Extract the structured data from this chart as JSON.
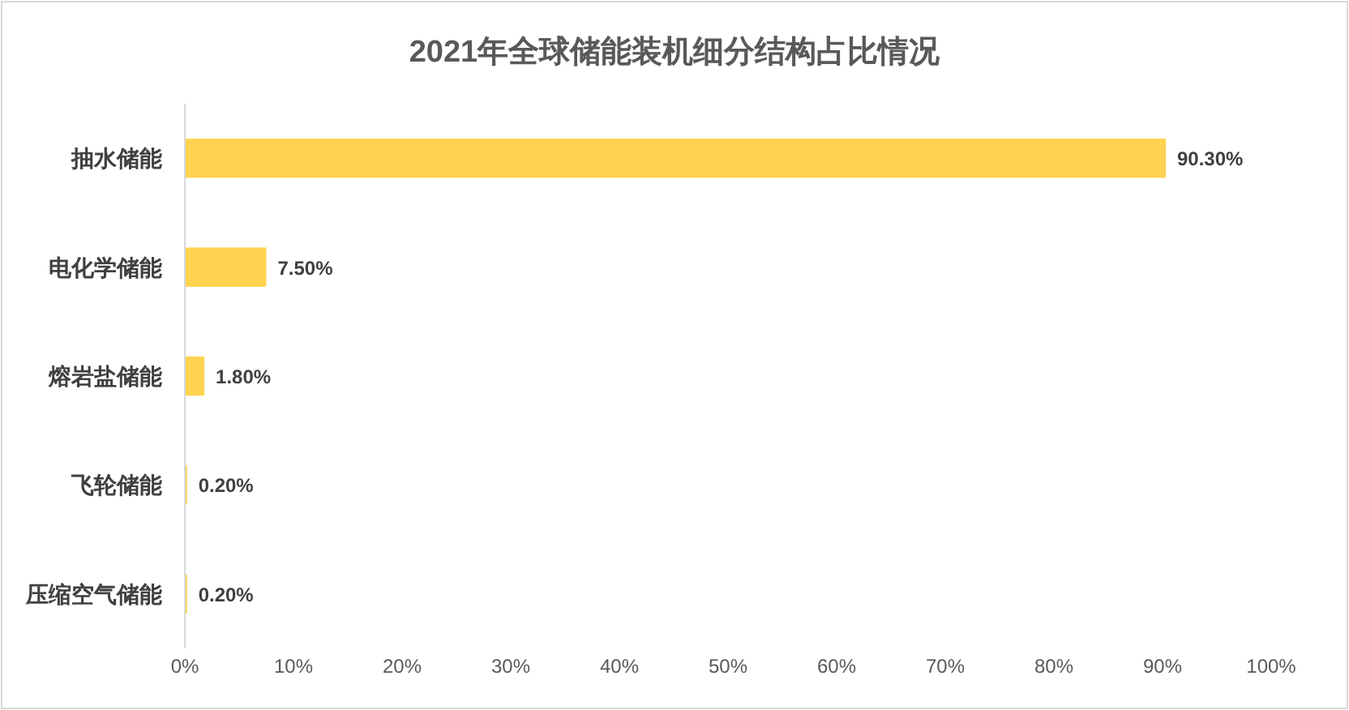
{
  "chart_data": {
    "type": "bar",
    "orientation": "horizontal",
    "title": "2021年全球储能装机细分结构占比情况",
    "categories": [
      "抽水储能",
      "电化学储能",
      "熔岩盐储能",
      "飞轮储能",
      "压缩空气储能"
    ],
    "values": [
      90.3,
      7.5,
      1.8,
      0.2,
      0.2
    ],
    "value_labels": [
      "90.30%",
      "7.50%",
      "1.80%",
      "0.20%",
      "0.20%"
    ],
    "color": "#ffd34f",
    "xlim": [
      0,
      100
    ],
    "xticks": [
      {
        "value": 0,
        "label": "0%"
      },
      {
        "value": 10,
        "label": "10%"
      },
      {
        "value": 20,
        "label": "20%"
      },
      {
        "value": 30,
        "label": "30%"
      },
      {
        "value": 40,
        "label": "40%"
      },
      {
        "value": 50,
        "label": "50%"
      },
      {
        "value": 60,
        "label": "60%"
      },
      {
        "value": 70,
        "label": "70%"
      },
      {
        "value": 80,
        "label": "80%"
      },
      {
        "value": 90,
        "label": "90%"
      },
      {
        "value": 100,
        "label": "100%"
      }
    ],
    "grid": false
  }
}
